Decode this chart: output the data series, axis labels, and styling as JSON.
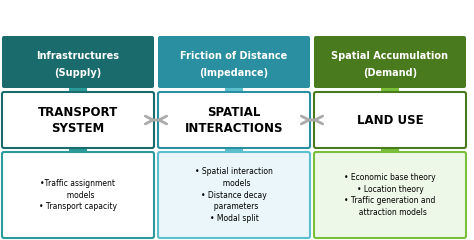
{
  "bg_color": "#ffffff",
  "col1_header_color": "#1a6b6b",
  "col2_header_color": "#2a8fa0",
  "col3_header_color": "#4a7a1e",
  "col1_connector_color": "#2a9a9a",
  "col2_connector_color": "#5bbfcf",
  "col3_connector_color": "#7abf3a",
  "col1_bot_border": "#2a9a9a",
  "col2_bot_border": "#5bbfcf",
  "col3_bot_border": "#7abf3a",
  "col1_bot_color": "#ffffff",
  "col2_bot_color": "#eaf6fa",
  "col3_bot_color": "#eef8e8",
  "arrow_color": "#aaaaaa",
  "header1_line1": "Infrastructures",
  "header1_line2": "(Supply)",
  "header2_line1": "Friction of Distance",
  "header2_line2": "(Impedance)",
  "header3_line1": "Spatial Accumulation",
  "header3_line2": "(Demand)",
  "mid1": "TRANSPORT\nSYSTEM",
  "mid2": "SPATIAL\nINTERACTIONS",
  "mid3": "LAND USE",
  "bot1_text": "•Traffic assignment\n  models\n• Transport capacity",
  "bot2_text": "• Spatial interaction\n  models\n• Distance decay\n  parameters\n• Modal split",
  "bot3_text": "• Economic base theory\n• Location theory\n• Traffic generation and\n  attraction models",
  "figsize": [
    4.74,
    2.4
  ],
  "dpi": 100
}
